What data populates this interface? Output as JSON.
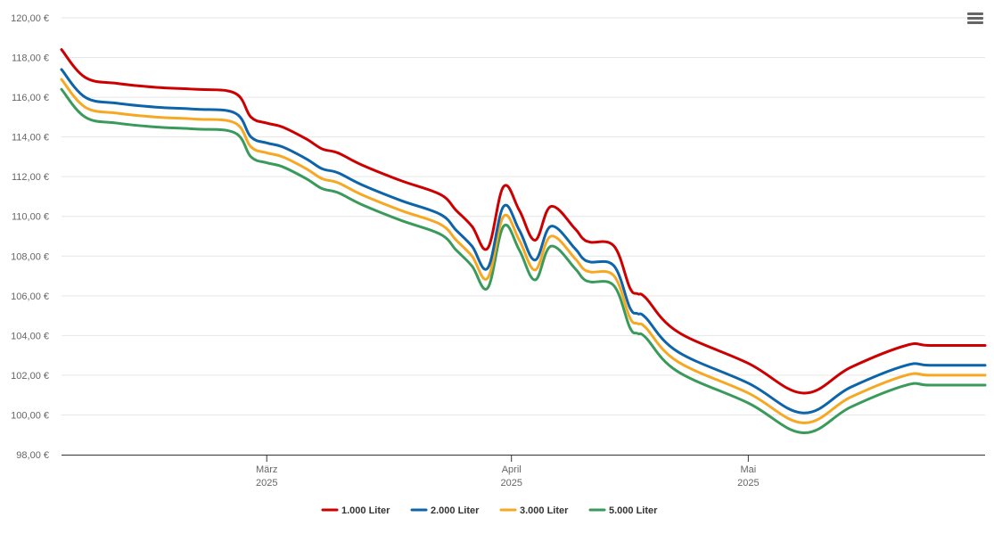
{
  "chart_data": {
    "type": "line",
    "title": "",
    "xlabel": "",
    "ylabel": "",
    "ylim": [
      98,
      120
    ],
    "yticks": [
      "98,00 €",
      "100,00 €",
      "102,00 €",
      "104,00 €",
      "106,00 €",
      "108,00 €",
      "110,00 €",
      "112,00 €",
      "114,00 €",
      "116,00 €",
      "118,00 €",
      "120,00 €"
    ],
    "xlim": [
      "2025-02-03",
      "2025-05-31"
    ],
    "xticks": [
      {
        "date": "2025-03-01",
        "label": "März",
        "sublabel": "2025"
      },
      {
        "date": "2025-04-01",
        "label": "April",
        "sublabel": "2025"
      },
      {
        "date": "2025-05-01",
        "label": "Mai",
        "sublabel": "2025"
      }
    ],
    "grid": true,
    "legend": "bottom",
    "x": [
      "2025-02-03",
      "2025-02-06",
      "2025-02-10",
      "2025-02-15",
      "2025-02-20",
      "2025-02-25",
      "2025-02-27",
      "2025-03-01",
      "2025-03-03",
      "2025-03-06",
      "2025-03-08",
      "2025-03-10",
      "2025-03-13",
      "2025-03-18",
      "2025-03-23",
      "2025-03-25",
      "2025-03-27",
      "2025-03-29",
      "2025-03-31",
      "2025-04-02",
      "2025-04-04",
      "2025-04-06",
      "2025-04-09",
      "2025-04-10",
      "2025-04-11",
      "2025-04-14",
      "2025-04-16",
      "2025-04-17",
      "2025-04-18",
      "2025-04-22",
      "2025-05-01",
      "2025-05-08",
      "2025-05-14",
      "2025-05-21",
      "2025-05-24",
      "2025-05-31"
    ],
    "series": [
      {
        "name": "1.000 Liter",
        "color": "#cc0000",
        "values": [
          118.4,
          117.0,
          116.7,
          116.5,
          116.4,
          116.2,
          115.0,
          114.7,
          114.5,
          113.9,
          113.4,
          113.2,
          112.6,
          111.8,
          111.1,
          110.3,
          109.5,
          108.4,
          111.5,
          110.3,
          108.8,
          110.5,
          109.4,
          108.9,
          108.7,
          108.5,
          106.4,
          106.1,
          105.9,
          104.2,
          102.6,
          101.1,
          102.4,
          103.5,
          103.5,
          103.5
        ]
      },
      {
        "name": "2.000 Liter",
        "color": "#0e64a8",
        "values": [
          117.4,
          116.0,
          115.7,
          115.5,
          115.4,
          115.2,
          114.0,
          113.7,
          113.5,
          112.9,
          112.4,
          112.2,
          111.6,
          110.8,
          110.1,
          109.3,
          108.5,
          107.4,
          110.5,
          109.3,
          107.8,
          109.5,
          108.4,
          107.9,
          107.7,
          107.5,
          105.4,
          105.1,
          104.9,
          103.2,
          101.6,
          100.1,
          101.4,
          102.5,
          102.5,
          102.5
        ]
      },
      {
        "name": "3.000 Liter",
        "color": "#f7a823",
        "values": [
          116.9,
          115.5,
          115.2,
          115.0,
          114.9,
          114.7,
          113.5,
          113.2,
          113.0,
          112.4,
          111.9,
          111.7,
          111.1,
          110.3,
          109.6,
          108.8,
          108.0,
          106.9,
          110.0,
          108.8,
          107.3,
          109.0,
          107.9,
          107.4,
          107.2,
          107.0,
          104.9,
          104.6,
          104.4,
          102.7,
          101.1,
          99.6,
          100.9,
          102.0,
          102.0,
          102.0
        ]
      },
      {
        "name": "5.000 Liter",
        "color": "#3a9a5b",
        "values": [
          116.4,
          115.0,
          114.7,
          114.5,
          114.4,
          114.2,
          113.0,
          112.7,
          112.5,
          111.9,
          111.4,
          111.2,
          110.6,
          109.8,
          109.1,
          108.3,
          107.5,
          106.4,
          109.5,
          108.3,
          106.8,
          108.5,
          107.4,
          106.9,
          106.7,
          106.5,
          104.4,
          104.1,
          103.9,
          102.2,
          100.6,
          99.1,
          100.4,
          101.5,
          101.5,
          101.5
        ]
      }
    ]
  },
  "menu": {
    "icon": "hamburger-menu-icon"
  }
}
